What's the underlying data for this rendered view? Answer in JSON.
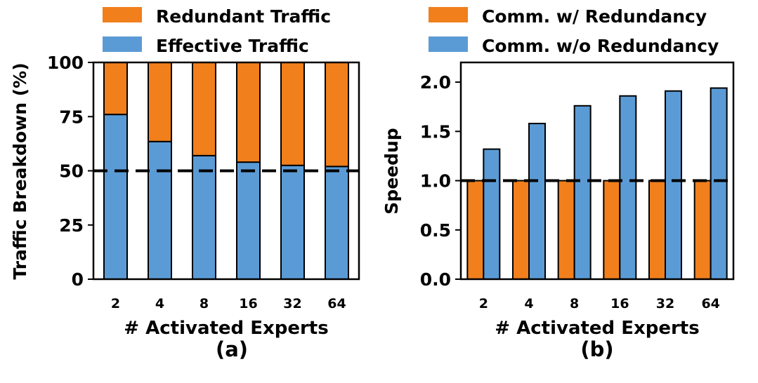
{
  "colors": {
    "effective": "#5b9bd5",
    "redundant": "#f07f1c",
    "reference_line": "#000000"
  },
  "chart_data": [
    {
      "type": "bar",
      "stacked": true,
      "panel_label": "(a)",
      "categories": [
        "2",
        "4",
        "8",
        "16",
        "32",
        "64"
      ],
      "series": [
        {
          "name": "Effective Traffic",
          "values": [
            76,
            63.5,
            57,
            54,
            52.5,
            52
          ]
        },
        {
          "name": "Redundant Traffic",
          "values": [
            24,
            36.5,
            43,
            46,
            47.5,
            48
          ]
        }
      ],
      "xlabel": "# Activated Experts",
      "ylabel": "Traffic Breakdown (%)",
      "ylim": [
        0,
        100
      ],
      "yticks": [
        0,
        25,
        50,
        75,
        100
      ],
      "reference_line": 50,
      "grid": false,
      "legend": {
        "placement": "above",
        "order": [
          "Redundant Traffic",
          "Effective Traffic"
        ]
      }
    },
    {
      "type": "bar",
      "stacked": false,
      "panel_label": "(b)",
      "categories": [
        "2",
        "4",
        "8",
        "16",
        "32",
        "64"
      ],
      "series": [
        {
          "name": "Comm. w/ Redundancy",
          "values": [
            1.0,
            1.0,
            1.0,
            1.0,
            1.0,
            1.0
          ]
        },
        {
          "name": "Comm. w/o Redundancy",
          "values": [
            1.32,
            1.58,
            1.76,
            1.86,
            1.91,
            1.94
          ]
        }
      ],
      "xlabel": "# Activated Experts",
      "ylabel": "Speedup",
      "ylim": [
        0,
        2.2
      ],
      "yticks": [
        "0.0",
        "0.5",
        "1.0",
        "1.5",
        "2.0"
      ],
      "reference_line": 1.0,
      "grid": false,
      "legend": {
        "placement": "above",
        "order": [
          "Comm. w/ Redundancy",
          "Comm. w/o Redundancy"
        ]
      }
    }
  ]
}
